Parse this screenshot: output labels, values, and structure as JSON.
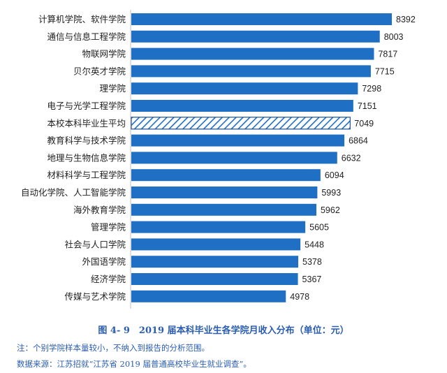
{
  "chart_data": {
    "type": "bar",
    "orientation": "horizontal",
    "categories": [
      "计算机学院、软件学院",
      "通信与信息工程学院",
      "物联网学院",
      "贝尔英才学院",
      "理学院",
      "电子与光学工程学院",
      "本校本科毕业生平均",
      "教育科学与技术学院",
      "地理与生物信息学院",
      "材料科学与工程学院",
      "自动化学院、人工智能学院",
      "海外教育学院",
      "管理学院",
      "社会与人口学院",
      "外国语学院",
      "经济学院",
      "传媒与艺术学院"
    ],
    "values": [
      8392,
      8003,
      7817,
      7715,
      7298,
      7151,
      7049,
      6864,
      6632,
      6094,
      5993,
      5962,
      5605,
      5448,
      5378,
      5367,
      4978
    ],
    "highlight_category": "本校本科毕业生平均",
    "xlim": [
      0,
      8392
    ],
    "grid": false,
    "legend": "none"
  },
  "colors": {
    "bar": "#1f6fc5",
    "highlight_stroke": "#1f4f8f",
    "text": "#222222",
    "caption": "#2a5db0"
  },
  "caption": "图 4- 9　2019 届本科毕业生各学院月收入分布（单位：元）",
  "notes": {
    "note": "注：个别学院样本量较小，不纳入到报告的分析范围。",
    "source": "数据来源：江苏招就“江苏省 2019 届普通高校毕业生就业调查”。"
  }
}
